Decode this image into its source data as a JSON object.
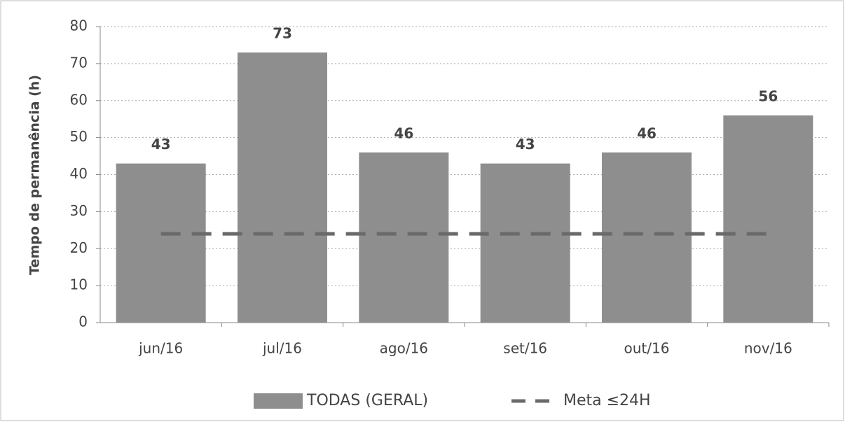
{
  "chart_data": {
    "type": "bar",
    "y_label": "Tempo de permanência (h)",
    "categories": [
      "jun/16",
      "jul/16",
      "ago/16",
      "set/16",
      "out/16",
      "nov/16"
    ],
    "series": [
      {
        "name": "TODAS (GERAL)",
        "type": "bar",
        "color": "#8e8e8e",
        "values": [
          43,
          73,
          46,
          43,
          46,
          56
        ]
      },
      {
        "name": "Meta ≤24H",
        "type": "line",
        "color": "#6a6a6a",
        "values": [
          24,
          24,
          24,
          24,
          24,
          24
        ]
      }
    ],
    "ylim": [
      0,
      80
    ],
    "yticks": [
      0,
      10,
      20,
      30,
      40,
      50,
      60,
      70,
      80
    ],
    "grid": true,
    "legend": "bottom"
  }
}
